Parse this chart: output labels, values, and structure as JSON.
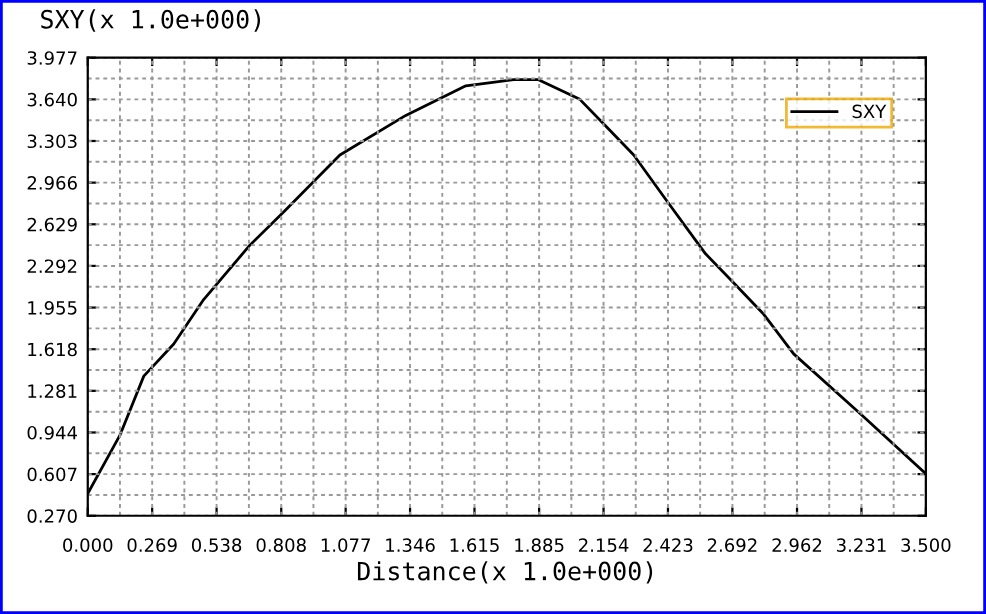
{
  "chart_data": {
    "type": "line",
    "ylabel": "SXY(x 1.0e+000)",
    "xlabel": "Distance(x 1.0e+000)",
    "series": [
      {
        "name": "SXY",
        "color": "#000000",
        "x": [
          0.0,
          0.134,
          0.234,
          0.359,
          0.484,
          0.677,
          0.819,
          1.053,
          1.328,
          1.579,
          1.779,
          1.88,
          2.055,
          2.155,
          2.28,
          2.414,
          2.58,
          2.7,
          2.823,
          2.948,
          3.224,
          3.5
        ],
        "values": [
          0.45,
          0.92,
          1.4,
          1.66,
          2.02,
          2.46,
          2.73,
          3.19,
          3.51,
          3.75,
          3.8,
          3.8,
          3.64,
          3.44,
          3.19,
          2.83,
          2.39,
          2.15,
          1.9,
          1.58,
          1.1,
          0.61
        ]
      }
    ],
    "xlim": [
      0,
      3.5
    ],
    "ylim": [
      0.27,
      3.977
    ],
    "xticks": [
      {
        "value": 0,
        "label": "0.000"
      },
      0.269,
      0.538,
      0.808,
      1.077,
      1.346,
      1.615,
      1.885,
      2.154,
      2.423,
      2.692,
      2.962,
      3.231,
      {
        "value": 3.5,
        "label": "3.500"
      }
    ],
    "yticks": [
      {
        "value": 0.27,
        "label": "0.270"
      },
      0.607,
      0.944,
      1.281,
      1.618,
      1.955,
      2.292,
      2.629,
      2.966,
      3.303,
      {
        "value": 3.64,
        "label": "3.640"
      },
      3.977
    ],
    "grid": true,
    "legend": "top right",
    "line_style": "solid",
    "marker": "none"
  }
}
